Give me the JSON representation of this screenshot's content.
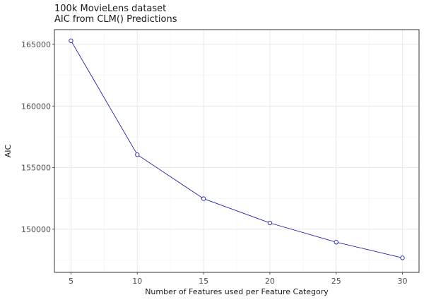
{
  "chart_data": {
    "type": "line",
    "title": "100k MovieLens dataset",
    "subtitle": "AIC from CLM() Predictions",
    "xlabel": "Number of Features used per Feature Category",
    "ylabel": "AIC",
    "x": [
      5,
      10,
      15,
      20,
      25,
      30
    ],
    "series": [
      {
        "values": [
          165300,
          156050,
          152480,
          150510,
          148950,
          147680
        ]
      }
    ],
    "xlim": [
      3.75,
      31.25
    ],
    "ylim": [
      146500,
      166200
    ],
    "xticks": [
      5,
      10,
      15,
      20,
      25,
      30
    ],
    "yticks": [
      150000,
      155000,
      160000,
      165000
    ],
    "grid": true,
    "line_color": "#1f1fa8",
    "marker_fill": "#ffffff"
  }
}
